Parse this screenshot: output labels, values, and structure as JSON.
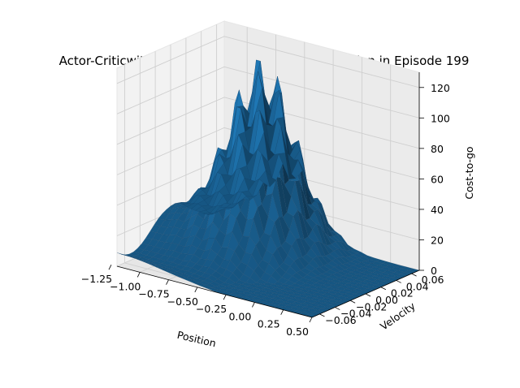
{
  "chart_data": {
    "type": "surface3d",
    "title": "Actor-Criticwith Eligibility Traces Cost-to-go function in Episode 199",
    "xlabel": "Position",
    "ylabel": "Velocity",
    "zlabel": "Cost-to-go",
    "xlim": [
      -1.2,
      0.5
    ],
    "ylim": [
      -0.07,
      0.07
    ],
    "zlim": [
      0,
      130
    ],
    "x_ticks": [
      "−1.25",
      "−1.00",
      "−0.75",
      "−0.50",
      "−0.25",
      "0.00",
      "0.25",
      "0.50"
    ],
    "y_ticks": [
      "−0.06",
      "−0.04",
      "−0.02",
      "0.00",
      "0.02",
      "0.04",
      "0.06"
    ],
    "z_ticks": [
      "0",
      "20",
      "40",
      "60",
      "80",
      "100",
      "120"
    ],
    "x_tick_values": [
      -1.25,
      -1.0,
      -0.75,
      -0.5,
      -0.25,
      0.0,
      0.25,
      0.5
    ],
    "y_tick_values": [
      -0.06,
      -0.04,
      -0.02,
      0.0,
      0.02,
      0.04,
      0.06
    ],
    "z_tick_values": [
      0,
      20,
      40,
      60,
      80,
      100,
      120
    ],
    "surface_color": "#1f77b4",
    "grid": true,
    "surface_summary": {
      "peak_value": 125,
      "peak_position": -0.6,
      "peak_velocity": 0.03,
      "baseline_left_edge": 22,
      "near_goal_value": 0
    }
  }
}
